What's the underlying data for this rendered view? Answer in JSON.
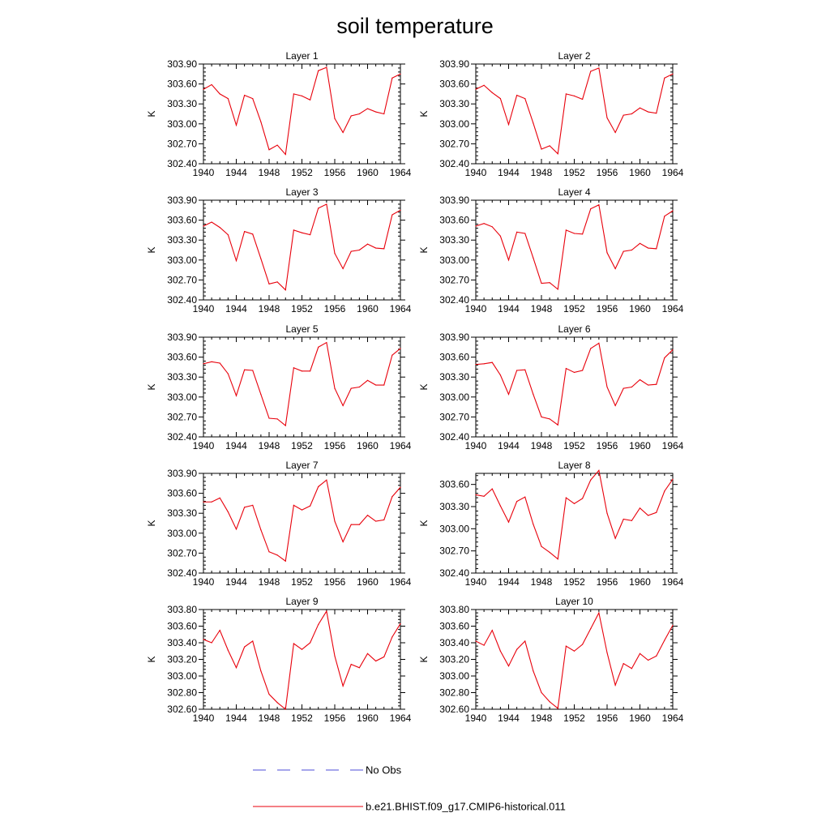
{
  "figure": {
    "title": "soil temperature"
  },
  "colors": {
    "model_line": "#e8000b",
    "obs_line": "#4c4cd8",
    "axis": "#000000"
  },
  "legend": [
    {
      "label": "No Obs",
      "style": "dashed",
      "color": "#4c4cd8"
    },
    {
      "label": "b.e21.BHIST.f09_g17.CMIP6-historical.011",
      "style": "solid",
      "color": "#e8000b"
    }
  ],
  "chart_data": [
    {
      "type": "line",
      "title": "Layer 1",
      "ylabel": "K",
      "xlabel": "",
      "xlim": [
        1940,
        1964
      ],
      "ylim": [
        302.4,
        303.9
      ],
      "xticks": [
        1940,
        1944,
        1948,
        1952,
        1956,
        1960,
        1964
      ],
      "yticks": [
        "302.40",
        "302.70",
        "303.00",
        "303.30",
        "303.60",
        "303.90"
      ],
      "x": [
        1940,
        1941,
        1942,
        1943,
        1944,
        1945,
        1946,
        1947,
        1948,
        1949,
        1950,
        1951,
        1952,
        1953,
        1954,
        1955,
        1956,
        1957,
        1958,
        1959,
        1960,
        1961,
        1962,
        1963,
        1964
      ],
      "series": [
        {
          "name": "b.e21.BHIST.f09_g17.CMIP6-historical.011",
          "values": [
            303.52,
            303.59,
            303.45,
            303.38,
            302.98,
            303.43,
            303.38,
            303.03,
            302.61,
            302.68,
            302.54,
            303.45,
            303.42,
            303.36,
            303.8,
            303.85,
            303.08,
            302.87,
            303.12,
            303.15,
            303.23,
            303.18,
            303.15,
            303.69,
            303.75
          ]
        }
      ]
    },
    {
      "type": "line",
      "title": "Layer 2",
      "ylabel": "K",
      "xlabel": "",
      "xlim": [
        1940,
        1964
      ],
      "ylim": [
        302.4,
        303.9
      ],
      "xticks": [
        1940,
        1944,
        1948,
        1952,
        1956,
        1960,
        1964
      ],
      "yticks": [
        "302.40",
        "302.70",
        "303.00",
        "303.30",
        "303.60",
        "303.90"
      ],
      "x": [
        1940,
        1941,
        1942,
        1943,
        1944,
        1945,
        1946,
        1947,
        1948,
        1949,
        1950,
        1951,
        1952,
        1953,
        1954,
        1955,
        1956,
        1957,
        1958,
        1959,
        1960,
        1961,
        1962,
        1963,
        1964
      ],
      "series": [
        {
          "name": "b.e21.BHIST.f09_g17.CMIP6-historical.011",
          "values": [
            303.52,
            303.58,
            303.47,
            303.38,
            302.99,
            303.43,
            303.38,
            303.01,
            302.62,
            302.67,
            302.55,
            303.45,
            303.42,
            303.37,
            303.79,
            303.84,
            303.09,
            302.87,
            303.13,
            303.15,
            303.24,
            303.18,
            303.16,
            303.69,
            303.75
          ]
        }
      ]
    },
    {
      "type": "line",
      "title": "Layer 3",
      "ylabel": "K",
      "xlabel": "",
      "xlim": [
        1940,
        1964
      ],
      "ylim": [
        302.4,
        303.9
      ],
      "xticks": [
        1940,
        1944,
        1948,
        1952,
        1956,
        1960,
        1964
      ],
      "yticks": [
        "302.40",
        "302.70",
        "303.00",
        "303.30",
        "303.60",
        "303.90"
      ],
      "x": [
        1940,
        1941,
        1942,
        1943,
        1944,
        1945,
        1946,
        1947,
        1948,
        1949,
        1950,
        1951,
        1952,
        1953,
        1954,
        1955,
        1956,
        1957,
        1958,
        1959,
        1960,
        1961,
        1962,
        1963,
        1964
      ],
      "series": [
        {
          "name": "b.e21.BHIST.f09_g17.CMIP6-historical.011",
          "values": [
            303.51,
            303.57,
            303.49,
            303.38,
            302.99,
            303.43,
            303.39,
            303.02,
            302.64,
            302.67,
            302.55,
            303.45,
            303.41,
            303.38,
            303.78,
            303.84,
            303.1,
            302.87,
            303.13,
            303.15,
            303.24,
            303.18,
            303.17,
            303.68,
            303.75
          ]
        }
      ]
    },
    {
      "type": "line",
      "title": "Layer 4",
      "ylabel": "K",
      "xlabel": "",
      "xlim": [
        1940,
        1964
      ],
      "ylim": [
        302.4,
        303.9
      ],
      "xticks": [
        1940,
        1944,
        1948,
        1952,
        1956,
        1960,
        1964
      ],
      "yticks": [
        "302.40",
        "302.70",
        "303.00",
        "303.30",
        "303.60",
        "303.90"
      ],
      "x": [
        1940,
        1941,
        1942,
        1943,
        1944,
        1945,
        1946,
        1947,
        1948,
        1949,
        1950,
        1951,
        1952,
        1953,
        1954,
        1955,
        1956,
        1957,
        1958,
        1959,
        1960,
        1961,
        1962,
        1963,
        1964
      ],
      "series": [
        {
          "name": "b.e21.BHIST.f09_g17.CMIP6-historical.011",
          "values": [
            303.51,
            303.55,
            303.5,
            303.36,
            303.0,
            303.42,
            303.4,
            303.03,
            302.65,
            302.66,
            302.56,
            303.45,
            303.4,
            303.39,
            303.77,
            303.83,
            303.11,
            302.87,
            303.13,
            303.15,
            303.25,
            303.18,
            303.17,
            303.66,
            303.74
          ]
        }
      ]
    },
    {
      "type": "line",
      "title": "Layer 5",
      "ylabel": "K",
      "xlabel": "",
      "xlim": [
        1940,
        1964
      ],
      "ylim": [
        302.4,
        303.9
      ],
      "xticks": [
        1940,
        1944,
        1948,
        1952,
        1956,
        1960,
        1964
      ],
      "yticks": [
        "302.40",
        "302.70",
        "303.00",
        "303.30",
        "303.60",
        "303.90"
      ],
      "x": [
        1940,
        1941,
        1942,
        1943,
        1944,
        1945,
        1946,
        1947,
        1948,
        1949,
        1950,
        1951,
        1952,
        1953,
        1954,
        1955,
        1956,
        1957,
        1958,
        1959,
        1960,
        1961,
        1962,
        1963,
        1964
      ],
      "series": [
        {
          "name": "b.e21.BHIST.f09_g17.CMIP6-historical.011",
          "values": [
            303.5,
            303.53,
            303.51,
            303.35,
            303.02,
            303.41,
            303.4,
            303.04,
            302.68,
            302.67,
            302.57,
            303.44,
            303.39,
            303.39,
            303.75,
            303.82,
            303.13,
            302.87,
            303.13,
            303.15,
            303.25,
            303.18,
            303.18,
            303.63,
            303.73
          ]
        }
      ]
    },
    {
      "type": "line",
      "title": "Layer 6",
      "ylabel": "K",
      "xlabel": "",
      "xlim": [
        1940,
        1964
      ],
      "ylim": [
        302.4,
        303.9
      ],
      "xticks": [
        1940,
        1944,
        1948,
        1952,
        1956,
        1960,
        1964
      ],
      "yticks": [
        "302.40",
        "302.70",
        "303.00",
        "303.30",
        "303.60",
        "303.90"
      ],
      "x": [
        1940,
        1941,
        1942,
        1943,
        1944,
        1945,
        1946,
        1947,
        1948,
        1949,
        1950,
        1951,
        1952,
        1953,
        1954,
        1955,
        1956,
        1957,
        1958,
        1959,
        1960,
        1961,
        1962,
        1963,
        1964
      ],
      "series": [
        {
          "name": "b.e21.BHIST.f09_g17.CMIP6-historical.011",
          "values": [
            303.49,
            303.5,
            303.52,
            303.33,
            303.04,
            303.4,
            303.41,
            303.04,
            302.7,
            302.67,
            302.58,
            303.43,
            303.37,
            303.4,
            303.73,
            303.81,
            303.15,
            302.87,
            303.13,
            303.15,
            303.26,
            303.18,
            303.19,
            303.59,
            303.71
          ]
        }
      ]
    },
    {
      "type": "line",
      "title": "Layer 7",
      "ylabel": "K",
      "xlabel": "",
      "xlim": [
        1940,
        1964
      ],
      "ylim": [
        302.4,
        303.9
      ],
      "xticks": [
        1940,
        1944,
        1948,
        1952,
        1956,
        1960,
        1964
      ],
      "yticks": [
        "302.40",
        "302.70",
        "303.00",
        "303.30",
        "303.60",
        "303.90"
      ],
      "x": [
        1940,
        1941,
        1942,
        1943,
        1944,
        1945,
        1946,
        1947,
        1948,
        1949,
        1950,
        1951,
        1952,
        1953,
        1954,
        1955,
        1956,
        1957,
        1958,
        1959,
        1960,
        1961,
        1962,
        1963,
        1964
      ],
      "series": [
        {
          "name": "b.e21.BHIST.f09_g17.CMIP6-historical.011",
          "values": [
            303.47,
            303.47,
            303.53,
            303.32,
            303.06,
            303.39,
            303.42,
            303.05,
            302.72,
            302.67,
            302.58,
            303.42,
            303.35,
            303.41,
            303.7,
            303.8,
            303.18,
            302.87,
            303.13,
            303.13,
            303.27,
            303.18,
            303.2,
            303.55,
            303.69
          ]
        }
      ]
    },
    {
      "type": "line",
      "title": "Layer 8",
      "ylabel": "K",
      "xlabel": "",
      "xlim": [
        1940,
        1964
      ],
      "ylim": [
        302.4,
        303.75
      ],
      "xticks": [
        1940,
        1944,
        1948,
        1952,
        1956,
        1960,
        1964
      ],
      "yticks": [
        "302.40",
        "302.70",
        "303.00",
        "303.30",
        "303.60"
      ],
      "x": [
        1940,
        1941,
        1942,
        1943,
        1944,
        1945,
        1946,
        1947,
        1948,
        1949,
        1950,
        1951,
        1952,
        1953,
        1954,
        1955,
        1956,
        1957,
        1958,
        1959,
        1960,
        1961,
        1962,
        1963,
        1964
      ],
      "series": [
        {
          "name": "b.e21.BHIST.f09_g17.CMIP6-historical.011",
          "values": [
            303.46,
            303.44,
            303.54,
            303.31,
            303.09,
            303.37,
            303.43,
            303.06,
            302.76,
            302.68,
            302.59,
            303.42,
            303.34,
            303.41,
            303.66,
            303.79,
            303.21,
            302.87,
            303.13,
            303.11,
            303.28,
            303.18,
            303.22,
            303.51,
            303.67
          ]
        }
      ]
    },
    {
      "type": "line",
      "title": "Layer 9",
      "ylabel": "K",
      "xlabel": "",
      "xlim": [
        1940,
        1964
      ],
      "ylim": [
        302.6,
        303.8
      ],
      "xticks": [
        1940,
        1944,
        1948,
        1952,
        1956,
        1960,
        1964
      ],
      "yticks": [
        "302.60",
        "302.80",
        "303.00",
        "303.20",
        "303.40",
        "303.60",
        "303.80"
      ],
      "x": [
        1940,
        1941,
        1942,
        1943,
        1944,
        1945,
        1946,
        1947,
        1948,
        1949,
        1950,
        1951,
        1952,
        1953,
        1954,
        1955,
        1956,
        1957,
        1958,
        1959,
        1960,
        1961,
        1962,
        1963,
        1964
      ],
      "series": [
        {
          "name": "b.e21.BHIST.f09_g17.CMIP6-historical.011",
          "values": [
            303.44,
            303.4,
            303.55,
            303.31,
            303.1,
            303.35,
            303.42,
            303.06,
            302.78,
            302.68,
            302.6,
            303.39,
            303.32,
            303.4,
            303.62,
            303.78,
            303.24,
            302.88,
            303.14,
            303.1,
            303.27,
            303.18,
            303.23,
            303.47,
            303.63
          ]
        }
      ]
    },
    {
      "type": "line",
      "title": "Layer 10",
      "ylabel": "K",
      "xlabel": "",
      "xlim": [
        1940,
        1964
      ],
      "ylim": [
        302.6,
        303.8
      ],
      "xticks": [
        1940,
        1944,
        1948,
        1952,
        1956,
        1960,
        1964
      ],
      "yticks": [
        "302.60",
        "302.80",
        "303.00",
        "303.20",
        "303.40",
        "303.60",
        "303.80"
      ],
      "x": [
        1940,
        1941,
        1942,
        1943,
        1944,
        1945,
        1946,
        1947,
        1948,
        1949,
        1950,
        1951,
        1952,
        1953,
        1954,
        1955,
        1956,
        1957,
        1958,
        1959,
        1960,
        1961,
        1962,
        1963,
        1964
      ],
      "series": [
        {
          "name": "b.e21.BHIST.f09_g17.CMIP6-historical.011",
          "values": [
            303.42,
            303.37,
            303.55,
            303.3,
            303.12,
            303.32,
            303.42,
            303.06,
            302.8,
            302.69,
            302.61,
            303.36,
            303.3,
            303.38,
            303.57,
            303.76,
            303.28,
            302.89,
            303.15,
            303.09,
            303.27,
            303.19,
            303.24,
            303.43,
            303.61
          ]
        }
      ]
    }
  ]
}
